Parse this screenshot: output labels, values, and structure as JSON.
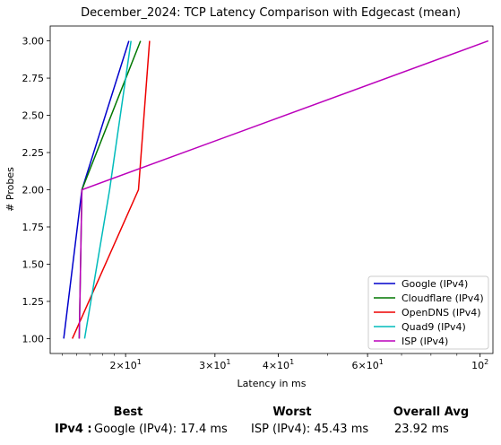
{
  "chart_data": {
    "type": "line",
    "title": "December_2024: TCP Latency Comparison with Edgecast (mean)",
    "xlabel": "Latency in ms",
    "ylabel": "# Probes",
    "xscale": "log",
    "xlim": [
      14.2,
      106
    ],
    "ylim": [
      0.9,
      3.1
    ],
    "x_ticks": [
      {
        "value": 20,
        "label": "2 × 10^1",
        "mant": "2",
        "exp": "1"
      },
      {
        "value": 30,
        "label": "3 × 10^1",
        "mant": "3",
        "exp": "1"
      },
      {
        "value": 40,
        "label": "4 × 10^1",
        "mant": "4",
        "exp": "1"
      },
      {
        "value": 60,
        "label": "6 × 10^1",
        "mant": "6",
        "exp": "1"
      },
      {
        "value": 100,
        "label": "10^2",
        "mant": "",
        "exp": "2"
      }
    ],
    "y_ticks": [
      1.0,
      1.25,
      1.5,
      1.75,
      2.0,
      2.25,
      2.5,
      2.75,
      3.0
    ],
    "y_tick_labels": [
      "1.00",
      "1.25",
      "1.50",
      "1.75",
      "2.00",
      "2.25",
      "2.50",
      "2.75",
      "3.00"
    ],
    "legend_position": "lower-right",
    "series": [
      {
        "name": "Google (IPv4)",
        "color": "#0000cc",
        "x": [
          15.1,
          16.4,
          20.3
        ],
        "y": [
          1,
          2,
          3
        ]
      },
      {
        "name": "Cloudflare (IPv4)",
        "color": "#007700",
        "x": [
          16.2,
          16.4,
          21.4
        ],
        "y": [
          1,
          2,
          3
        ]
      },
      {
        "name": "OpenDNS (IPv4)",
        "color": "#ee0000",
        "x": [
          15.7,
          21.2,
          22.3
        ],
        "y": [
          1,
          2,
          3
        ]
      },
      {
        "name": "Quad9 (IPv4)",
        "color": "#00bbbb",
        "x": [
          16.6,
          18.6,
          20.5
        ],
        "y": [
          1,
          2,
          3
        ]
      },
      {
        "name": "ISP (IPv4)",
        "color": "#bb00bb",
        "x": [
          16.2,
          16.4,
          103.8
        ],
        "y": [
          1,
          2,
          3
        ]
      }
    ]
  },
  "summary": {
    "best_header": "Best",
    "worst_header": "Worst",
    "avg_header": "Overall Avg",
    "row_label": "IPv4 :",
    "best": "Google (IPv4): 17.4 ms",
    "worst": "ISP (IPv4): 45.43 ms",
    "avg": "23.92 ms"
  }
}
